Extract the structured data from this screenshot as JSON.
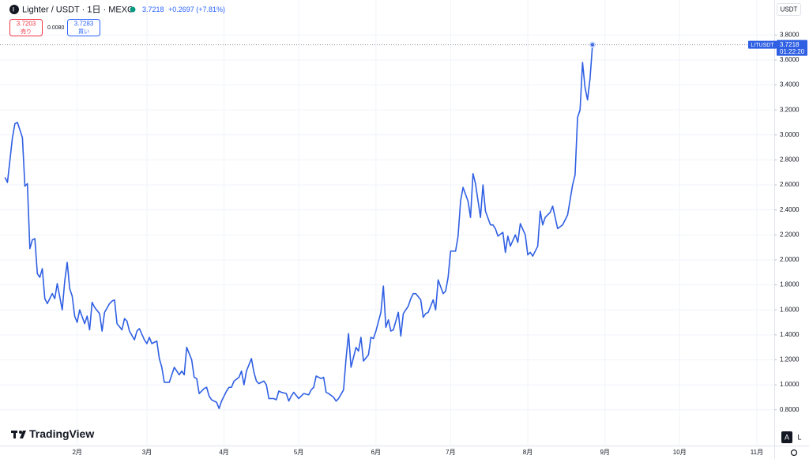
{
  "header": {
    "symbol": "Lighter / USDT · 1日 · MEXC",
    "change": "+0.2697 (+7.81%)"
  },
  "trade": {
    "sell_price": 3.7203,
    "sell_label": "売り",
    "spread": "0.0080",
    "buy_price": 3.7283,
    "buy_label": "買い"
  },
  "currency": "USDT",
  "countdown": "01:22:20",
  "brand": "TradingView",
  "buttons": [
    "A",
    "L"
  ],
  "chart_data": {
    "type": "line",
    "x": [
      2,
      3,
      5,
      6,
      7,
      9,
      10,
      11,
      12,
      13,
      14,
      15,
      16,
      17,
      18,
      19,
      21,
      22,
      23,
      25,
      26,
      27,
      28,
      29,
      30,
      31,
      32,
      34,
      35,
      36,
      37,
      38,
      40,
      41,
      42,
      44,
      45,
      46,
      47,
      49,
      50,
      51,
      52,
      54,
      55,
      56,
      58,
      59,
      60,
      61,
      63,
      64,
      65,
      66,
      68,
      69,
      70,
      72,
      73,
      74,
      75,
      77,
      78,
      79,
      80,
      82,
      83,
      84,
      85,
      87,
      88,
      89,
      91,
      92,
      93,
      94,
      96,
      97,
      98,
      99,
      101,
      102,
      103,
      104,
      106,
      107,
      108,
      110,
      111,
      112,
      113,
      115,
      116,
      117,
      118,
      120,
      121,
      122,
      124,
      125,
      126,
      127,
      129,
      130,
      131,
      132,
      134,
      135,
      136,
      138,
      139,
      140,
      141,
      143,
      144,
      145,
      146,
      148,
      149,
      150,
      151,
      153,
      154,
      155,
      156,
      157,
      158,
      160,
      161,
      162,
      164,
      165,
      166,
      167,
      169,
      170,
      171,
      172,
      174,
      175,
      176,
      178,
      179,
      180,
      181,
      183,
      184,
      185,
      186,
      188,
      189,
      190,
      191,
      193,
      194,
      195,
      197,
      198,
      199,
      200,
      202,
      203,
      204,
      205,
      207,
      208,
      209,
      211,
      212,
      213,
      214,
      216,
      217,
      218,
      219,
      221,
      222,
      223,
      224,
      226,
      227,
      228,
      230,
      231,
      232,
      233,
      234,
      235,
      236,
      237,
      238
    ],
    "series": [
      {
        "name": "LITUSDT",
        "color": "#2f5fe3",
        "values": [
          2.66,
          2.62,
          2.98,
          3.09,
          3.1,
          2.98,
          2.59,
          2.61,
          2.09,
          2.16,
          2.17,
          1.89,
          1.86,
          1.93,
          1.69,
          1.65,
          1.73,
          1.69,
          1.81,
          1.6,
          1.83,
          1.98,
          1.77,
          1.71,
          1.55,
          1.5,
          1.6,
          1.49,
          1.55,
          1.44,
          1.66,
          1.62,
          1.57,
          1.43,
          1.58,
          1.65,
          1.67,
          1.68,
          1.49,
          1.44,
          1.53,
          1.51,
          1.43,
          1.36,
          1.43,
          1.45,
          1.36,
          1.33,
          1.38,
          1.33,
          1.35,
          1.21,
          1.14,
          1.02,
          1.02,
          1.08,
          1.14,
          1.08,
          1.11,
          1.08,
          1.3,
          1.2,
          1.06,
          1.05,
          0.93,
          0.97,
          0.98,
          0.91,
          0.88,
          0.86,
          0.81,
          0.87,
          0.95,
          0.98,
          0.98,
          1.03,
          1.06,
          1.11,
          1.0,
          1.11,
          1.21,
          1.1,
          1.03,
          1.01,
          1.03,
          1.0,
          0.89,
          0.89,
          0.88,
          0.95,
          0.94,
          0.93,
          0.87,
          0.91,
          0.94,
          0.89,
          0.91,
          0.93,
          0.92,
          0.96,
          0.98,
          1.07,
          1.05,
          1.06,
          0.94,
          0.93,
          0.9,
          0.87,
          0.89,
          0.96,
          1.21,
          1.41,
          1.14,
          1.3,
          1.27,
          1.38,
          1.19,
          1.24,
          1.38,
          1.37,
          1.43,
          1.58,
          1.79,
          1.46,
          1.52,
          1.43,
          1.44,
          1.58,
          1.39,
          1.57,
          1.63,
          1.69,
          1.73,
          1.73,
          1.68,
          1.54,
          1.57,
          1.58,
          1.68,
          1.6,
          1.84,
          1.73,
          1.75,
          1.86,
          2.07,
          2.07,
          2.19,
          2.47,
          2.58,
          2.47,
          2.34,
          2.69,
          2.61,
          2.34,
          2.6,
          2.39,
          2.28,
          2.28,
          2.25,
          2.19,
          2.22,
          2.06,
          2.19,
          2.11,
          2.2,
          2.14,
          2.29,
          2.2,
          2.04,
          2.06,
          2.03,
          2.11,
          2.39,
          2.28,
          2.34,
          2.38,
          2.43,
          2.34,
          2.25,
          2.28,
          2.32,
          2.36,
          2.6,
          2.68,
          3.14,
          3.2,
          3.58,
          3.38,
          3.28,
          3.45,
          3.7218
        ]
      }
    ],
    "last_price": 3.7218,
    "xlim": [
      0,
      311
    ],
    "xticks": [
      {
        "value": 31,
        "label": "2月"
      },
      {
        "value": 59,
        "label": "3月"
      },
      {
        "value": 90,
        "label": "4月"
      },
      {
        "value": 120,
        "label": "5月"
      },
      {
        "value": 151,
        "label": "6月"
      },
      {
        "value": 181,
        "label": "7月"
      },
      {
        "value": 212,
        "label": "8月"
      },
      {
        "value": 243,
        "label": "9月"
      },
      {
        "value": 273,
        "label": "10月"
      },
      {
        "value": 304,
        "label": "11月"
      }
    ],
    "ylim": [
      0.52,
      4.08
    ],
    "yticks": [
      {
        "value": 0.8,
        "label": "0.8000"
      },
      {
        "value": 1.0,
        "label": "1.0000"
      },
      {
        "value": 1.2,
        "label": "1.2000"
      },
      {
        "value": 1.4,
        "label": "1.4000"
      },
      {
        "value": 1.6,
        "label": "1.6000"
      },
      {
        "value": 1.8,
        "label": "1.8000"
      },
      {
        "value": 2.0,
        "label": "2.0000"
      },
      {
        "value": 2.2,
        "label": "2.2000"
      },
      {
        "value": 2.4,
        "label": "2.4000"
      },
      {
        "value": 2.6,
        "label": "2.6000"
      },
      {
        "value": 2.8,
        "label": "2.8000"
      },
      {
        "value": 3.0,
        "label": "3.0000"
      },
      {
        "value": 3.2,
        "label": "3.2000"
      },
      {
        "value": 3.4,
        "label": "3.4000"
      },
      {
        "value": 3.6,
        "label": "3.6000"
      },
      {
        "value": 3.8,
        "label": "3.8000"
      }
    ],
    "grid": true
  }
}
